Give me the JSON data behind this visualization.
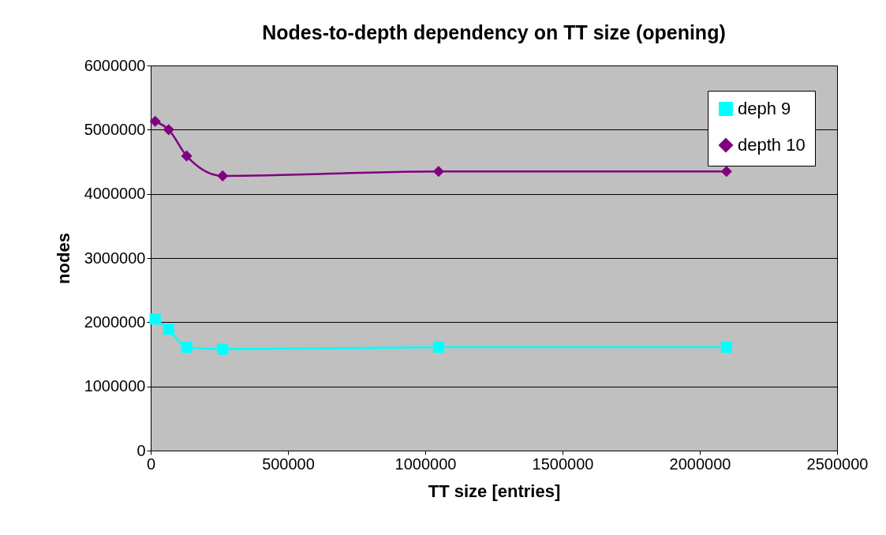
{
  "chart_data": {
    "type": "line",
    "title": "Nodes-to-depth dependency on TT size (opening)",
    "xlabel": "TT size [entries]",
    "ylabel": "nodes",
    "x": [
      16384,
      65536,
      131072,
      262144,
      1048576,
      2097152
    ],
    "series": [
      {
        "name": "deph 9",
        "color": "#00ffff",
        "marker": "square",
        "values": [
          2050000,
          1890000,
          1610000,
          1580000,
          1610000,
          1610000
        ]
      },
      {
        "name": "depth 10",
        "color": "#800080",
        "marker": "diamond",
        "values": [
          5130000,
          5000000,
          4590000,
          4280000,
          4350000,
          4350000
        ]
      }
    ],
    "xlim": [
      0,
      2500000
    ],
    "xticks": [
      0,
      500000,
      1000000,
      1500000,
      2000000,
      2500000
    ],
    "ylim": [
      0,
      6000000
    ],
    "yticks": [
      0,
      1000000,
      2000000,
      3000000,
      4000000,
      5000000,
      6000000
    ],
    "grid": "y",
    "legend": "top right",
    "line_style": "solid"
  }
}
